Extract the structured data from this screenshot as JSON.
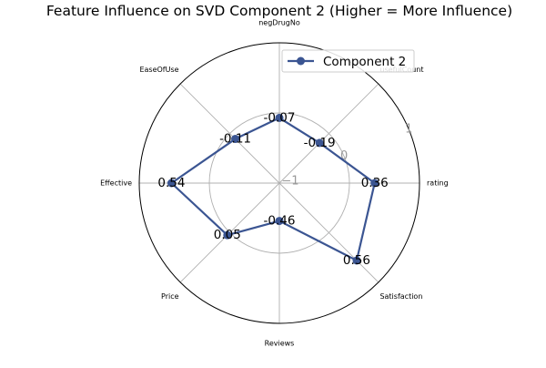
{
  "chart_data": {
    "type": "radar",
    "title": "Feature Influence on SVD Component 2 (Higher = More Influence)",
    "axes": [
      "rating",
      "usefulCount",
      "negDrugNo",
      "EaseOfUse",
      "Effective",
      "Price",
      "Reviews",
      "Satisfaction"
    ],
    "rlim": [
      -1,
      1
    ],
    "radial_ticks": [
      -1,
      0,
      1
    ],
    "grid": true,
    "legend_position": "top-right",
    "series": [
      {
        "name": "Component 2",
        "color": "#3b5592",
        "values": [
          0.36,
          -0.19,
          -0.07,
          -0.11,
          0.54,
          0.05,
          -0.46,
          0.56
        ]
      }
    ]
  }
}
